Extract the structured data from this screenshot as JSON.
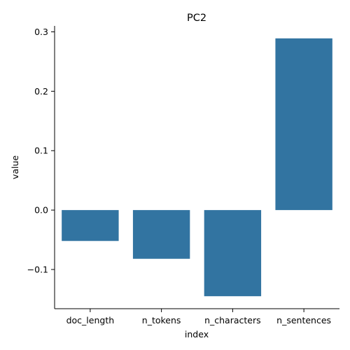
{
  "chart_data": {
    "type": "bar",
    "title": "PC2",
    "xlabel": "index",
    "ylabel": "value",
    "categories": [
      "doc_length",
      "n_tokens",
      "n_characters",
      "n_sentences"
    ],
    "values": [
      -0.052,
      -0.082,
      -0.145,
      0.289
    ],
    "ylim": [
      -0.166,
      0.31
    ],
    "yticks": [
      -0.1,
      0.0,
      0.1,
      0.2,
      0.3
    ],
    "ytick_labels": [
      "−0.1",
      "0.0",
      "0.1",
      "0.2",
      "0.3"
    ],
    "bar_color": "#3274a1",
    "grid": false,
    "legend": "none"
  }
}
